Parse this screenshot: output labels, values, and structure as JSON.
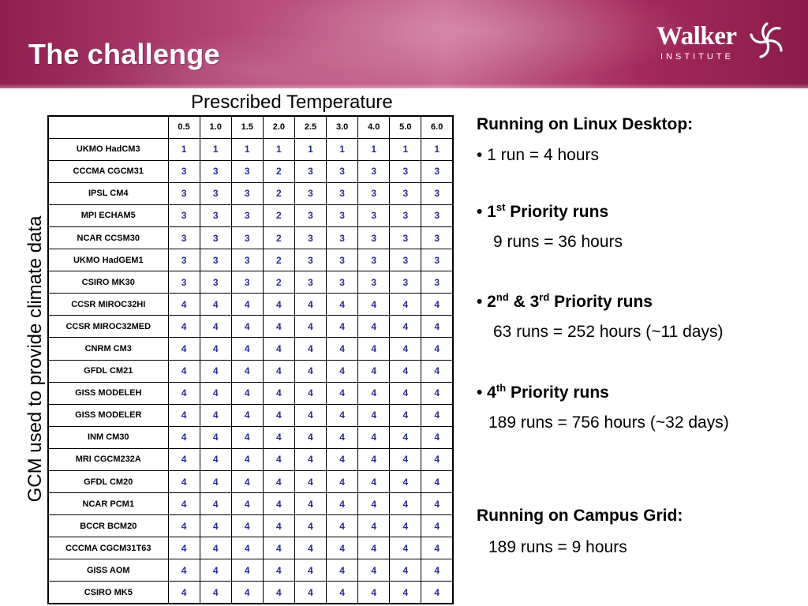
{
  "header": {
    "title": "The challenge",
    "logo": {
      "brand": "Walker",
      "subtitle": "INSTITUTE",
      "icon": "swirl-logo-icon"
    },
    "colors": {
      "band": "#9e2d5e",
      "text": "#ffffff"
    }
  },
  "table": {
    "caption": "Prescribed Temperature",
    "row_axis_label": "GCM used to provide climate data",
    "columns": [
      "0.5",
      "1.0",
      "1.5",
      "2.0",
      "2.5",
      "3.0",
      "4.0",
      "5.0",
      "6.0"
    ],
    "rows": [
      {
        "model": "UKMO HadCM3",
        "values": [
          "1",
          "1",
          "1",
          "1",
          "1",
          "1",
          "1",
          "1",
          "1"
        ]
      },
      {
        "model": "CCCMA CGCM31",
        "values": [
          "3",
          "3",
          "3",
          "2",
          "3",
          "3",
          "3",
          "3",
          "3"
        ]
      },
      {
        "model": "IPSL CM4",
        "values": [
          "3",
          "3",
          "3",
          "2",
          "3",
          "3",
          "3",
          "3",
          "3"
        ]
      },
      {
        "model": "MPI ECHAM5",
        "values": [
          "3",
          "3",
          "3",
          "2",
          "3",
          "3",
          "3",
          "3",
          "3"
        ]
      },
      {
        "model": "NCAR CCSM30",
        "values": [
          "3",
          "3",
          "3",
          "2",
          "3",
          "3",
          "3",
          "3",
          "3"
        ]
      },
      {
        "model": "UKMO HadGEM1",
        "values": [
          "3",
          "3",
          "3",
          "2",
          "3",
          "3",
          "3",
          "3",
          "3"
        ]
      },
      {
        "model": "CSIRO MK30",
        "values": [
          "3",
          "3",
          "3",
          "2",
          "3",
          "3",
          "3",
          "3",
          "3"
        ]
      },
      {
        "model": "CCSR MIROC32HI",
        "values": [
          "4",
          "4",
          "4",
          "4",
          "4",
          "4",
          "4",
          "4",
          "4"
        ]
      },
      {
        "model": "CCSR MIROC32MED",
        "values": [
          "4",
          "4",
          "4",
          "4",
          "4",
          "4",
          "4",
          "4",
          "4"
        ]
      },
      {
        "model": "CNRM CM3",
        "values": [
          "4",
          "4",
          "4",
          "4",
          "4",
          "4",
          "4",
          "4",
          "4"
        ]
      },
      {
        "model": "GFDL CM21",
        "values": [
          "4",
          "4",
          "4",
          "4",
          "4",
          "4",
          "4",
          "4",
          "4"
        ]
      },
      {
        "model": "GISS MODELEH",
        "values": [
          "4",
          "4",
          "4",
          "4",
          "4",
          "4",
          "4",
          "4",
          "4"
        ]
      },
      {
        "model": "GISS MODELER",
        "values": [
          "4",
          "4",
          "4",
          "4",
          "4",
          "4",
          "4",
          "4",
          "4"
        ]
      },
      {
        "model": "INM CM30",
        "values": [
          "4",
          "4",
          "4",
          "4",
          "4",
          "4",
          "4",
          "4",
          "4"
        ]
      },
      {
        "model": "MRI CGCM232A",
        "values": [
          "4",
          "4",
          "4",
          "4",
          "4",
          "4",
          "4",
          "4",
          "4"
        ]
      },
      {
        "model": "GFDL CM20",
        "values": [
          "4",
          "4",
          "4",
          "4",
          "4",
          "4",
          "4",
          "4",
          "4"
        ]
      },
      {
        "model": "NCAR PCM1",
        "values": [
          "4",
          "4",
          "4",
          "4",
          "4",
          "4",
          "4",
          "4",
          "4"
        ]
      },
      {
        "model": "BCCR BCM20",
        "values": [
          "4",
          "4",
          "4",
          "4",
          "4",
          "4",
          "4",
          "4",
          "4"
        ]
      },
      {
        "model": "CCCMA CGCM31T63",
        "values": [
          "4",
          "4",
          "4",
          "4",
          "4",
          "4",
          "4",
          "4",
          "4"
        ]
      },
      {
        "model": "GISS AOM",
        "values": [
          "4",
          "4",
          "4",
          "4",
          "4",
          "4",
          "4",
          "4",
          "4"
        ]
      },
      {
        "model": "CSIRO MK5",
        "values": [
          "4",
          "4",
          "4",
          "4",
          "4",
          "4",
          "4",
          "4",
          "4"
        ]
      }
    ],
    "value_color": "#2a2a9a"
  },
  "panel": {
    "linux_heading": "Running on Linux Desktop:",
    "linux_bullet": "• 1 run = 4 hours",
    "p1_prefix": "• 1",
    "p1_sup": "st",
    "p1_suffix": " Priority runs",
    "p1_detail": "9 runs = 36 hours",
    "p23_prefix": "• 2",
    "p23_sup1": "nd",
    "p23_mid": " & 3",
    "p23_sup2": "rd",
    "p23_suffix": " Priority runs",
    "p23_detail": "63 runs = 252 hours (~11 days)",
    "p4_prefix": "• 4",
    "p4_sup": "th",
    "p4_suffix": " Priority runs",
    "p4_detail": "189 runs = 756 hours (~32 days)",
    "grid_heading": "Running on Campus Grid:",
    "grid_detail": "189 runs = 9 hours"
  }
}
